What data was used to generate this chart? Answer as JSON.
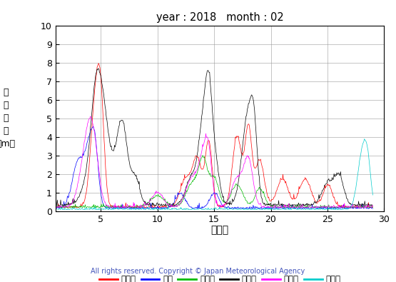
{
  "title": "year : 2018   month : 02",
  "xlabel": "（日）",
  "ylabel": "有\n義\n波\n高\n（m）",
  "xlim": [
    1,
    29
  ],
  "ylim": [
    0,
    10
  ],
  "yticks": [
    0,
    1,
    2,
    3,
    4,
    5,
    6,
    7,
    8,
    9,
    10
  ],
  "xticks": [
    5,
    10,
    15,
    20,
    25,
    30
  ],
  "copyright": "All rights reserved. Copyright © Japan Meteorological Agency",
  "legend": [
    {
      "label": "上ノ国",
      "color": "#FF0000"
    },
    {
      "label": "唐桑",
      "color": "#0000FF"
    },
    {
      "label": "石廊崎",
      "color": "#00BB00"
    },
    {
      "label": "経ヶ崎",
      "color": "#000000"
    },
    {
      "label": "生月島",
      "color": "#FF00FF"
    },
    {
      "label": "屋久島",
      "color": "#00CCCC"
    }
  ],
  "background_color": "#ffffff",
  "grid_color": "#999999"
}
